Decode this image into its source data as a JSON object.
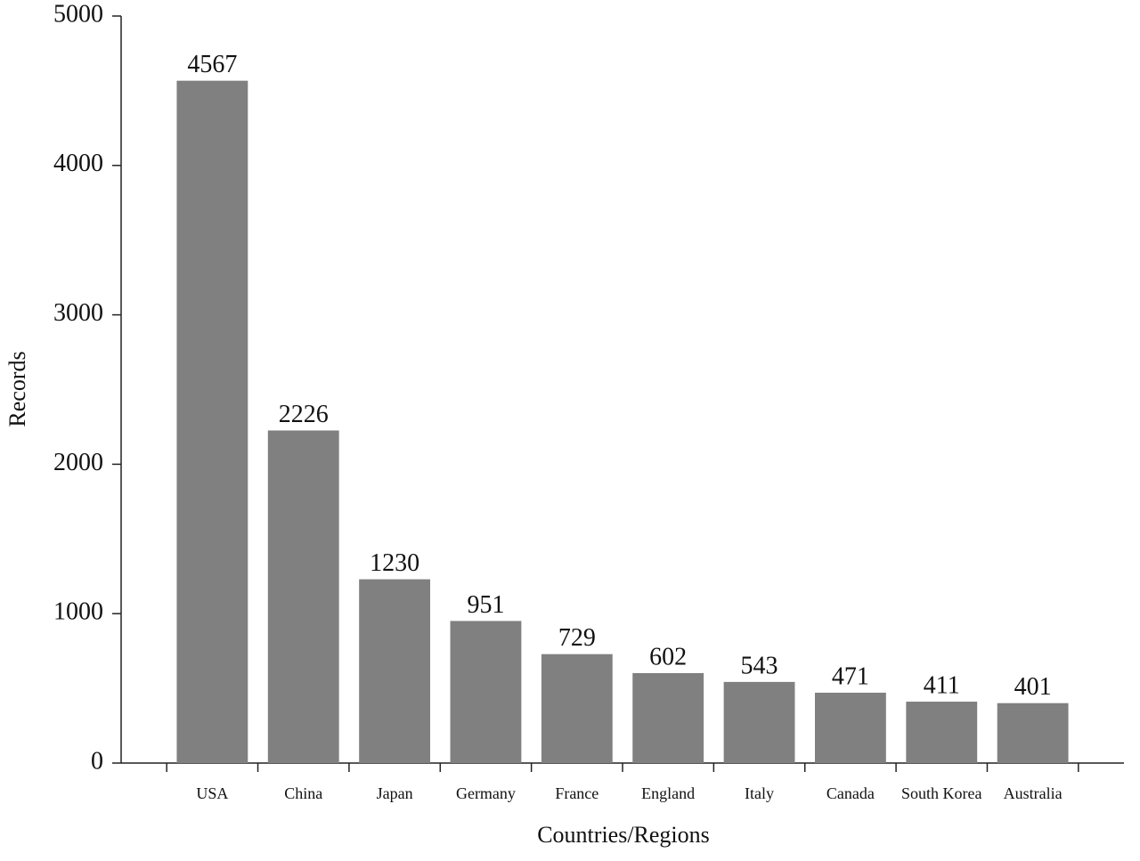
{
  "chart_data": {
    "type": "bar",
    "x_label": "Countries/Regions",
    "y_label": "Records",
    "categories": [
      "USA",
      "China",
      "Japan",
      "Germany",
      "France",
      "England",
      "Italy",
      "Canada",
      "South Korea",
      "Australia"
    ],
    "values": [
      4567,
      2226,
      1230,
      951,
      729,
      602,
      543,
      471,
      411,
      401
    ],
    "color": "#808080",
    "ylim": [
      0,
      5000
    ],
    "yticks": [
      0,
      1000,
      2000,
      3000,
      4000,
      5000
    ],
    "grid": false
  }
}
